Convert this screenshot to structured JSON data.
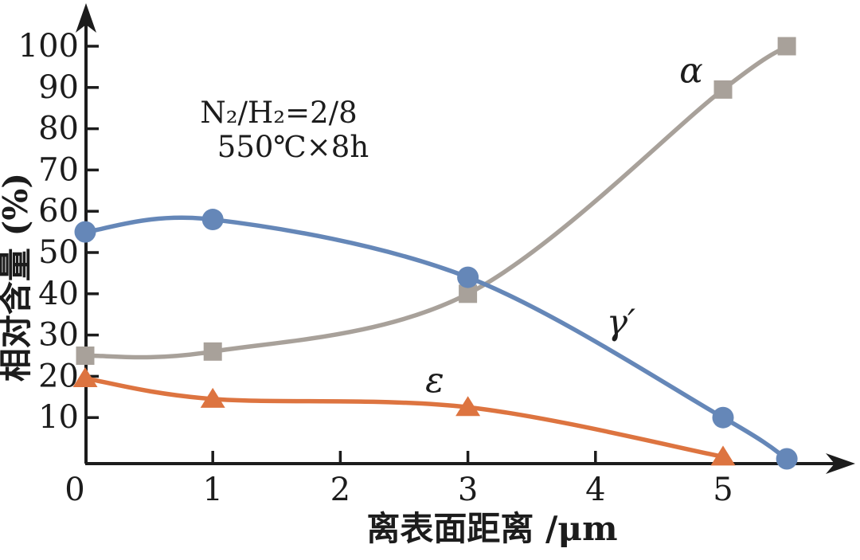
{
  "chart_data": {
    "type": "line",
    "title": "",
    "annotation_line1": "N₂/H₂=2/8",
    "annotation_line2": "550℃×8h",
    "xlabel": "离表面距离 /μm",
    "ylabel": "相对含量 (%)",
    "xlim": [
      0,
      5.9
    ],
    "ylim": [
      0,
      107
    ],
    "x_ticks": [
      0,
      1,
      2,
      3,
      4,
      5
    ],
    "y_ticks": [
      10,
      20,
      30,
      40,
      50,
      60,
      70,
      80,
      90,
      100
    ],
    "grid": false,
    "legend_position": "inline-labels",
    "axis_color": "#1c1c1c",
    "series": [
      {
        "id": "alpha",
        "name": "α",
        "marker": "square",
        "color": "#a8a19a",
        "points": [
          [
            0,
            25
          ],
          [
            1,
            26
          ],
          [
            3,
            40
          ],
          [
            5,
            89.5
          ],
          [
            5.5,
            100
          ]
        ],
        "label_pos": [
          4.75,
          94
        ]
      },
      {
        "id": "epsilon",
        "name": "ε",
        "marker": "triangle",
        "color": "#dd7440",
        "points": [
          [
            0,
            19.5
          ],
          [
            1,
            14.5
          ],
          [
            3,
            12.5
          ],
          [
            5,
            0.5
          ]
        ],
        "label_pos": [
          2.74,
          19
        ]
      },
      {
        "id": "gamma-prime",
        "name": "γ′",
        "marker": "circle",
        "color": "#6587b8",
        "points": [
          [
            0,
            55
          ],
          [
            1,
            58
          ],
          [
            3,
            44
          ],
          [
            5,
            10
          ],
          [
            5.5,
            0
          ]
        ],
        "label_pos": [
          4.2,
          33
        ]
      }
    ]
  }
}
